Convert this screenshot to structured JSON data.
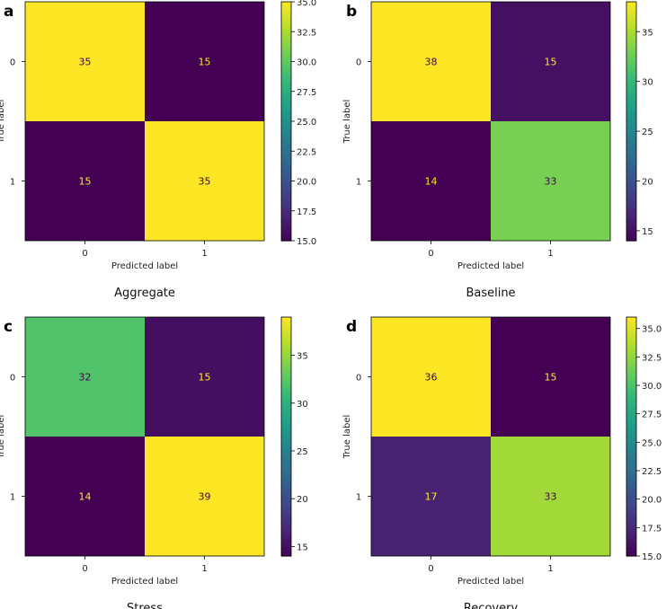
{
  "chart_data": [
    {
      "type": "heatmap",
      "panel_letter": "a",
      "title": "Aggregate",
      "xlabel": "Predicted label",
      "ylabel": "True label",
      "x_categories": [
        "0",
        "1"
      ],
      "y_categories": [
        "0",
        "1"
      ],
      "values": [
        [
          35,
          15
        ],
        [
          15,
          35
        ]
      ],
      "colorbar": {
        "min": 15,
        "max": 35,
        "ticks": [
          "15.0",
          "17.5",
          "20.0",
          "22.5",
          "25.0",
          "27.5",
          "30.0",
          "32.5",
          "35.0"
        ]
      }
    },
    {
      "type": "heatmap",
      "panel_letter": "b",
      "title": "Baseline",
      "xlabel": "Predicted label",
      "ylabel": "True label",
      "x_categories": [
        "0",
        "1"
      ],
      "y_categories": [
        "0",
        "1"
      ],
      "values": [
        [
          38,
          15
        ],
        [
          14,
          33
        ]
      ],
      "colorbar": {
        "min": 14,
        "max": 38,
        "ticks": [
          "15",
          "20",
          "25",
          "30",
          "35"
        ]
      }
    },
    {
      "type": "heatmap",
      "panel_letter": "c",
      "title": "Stress",
      "xlabel": "Predicted label",
      "ylabel": "True label",
      "x_categories": [
        "0",
        "1"
      ],
      "y_categories": [
        "0",
        "1"
      ],
      "values": [
        [
          32,
          15
        ],
        [
          14,
          39
        ]
      ],
      "colorbar": {
        "min": 14,
        "max": 39,
        "ticks": [
          "15",
          "20",
          "25",
          "30",
          "35"
        ]
      }
    },
    {
      "type": "heatmap",
      "panel_letter": "d",
      "title": "Recovery",
      "xlabel": "Predicted label",
      "ylabel": "True label",
      "x_categories": [
        "0",
        "1"
      ],
      "y_categories": [
        "0",
        "1"
      ],
      "values": [
        [
          36,
          15
        ],
        [
          17,
          33
        ]
      ],
      "colorbar": {
        "min": 15,
        "max": 36,
        "ticks": [
          "15.0",
          "17.5",
          "20.0",
          "22.5",
          "25.0",
          "27.5",
          "30.0",
          "32.5",
          "35.0"
        ]
      }
    }
  ],
  "colormap": "viridis",
  "text_colors": {
    "on_dark": "#fde725",
    "on_light": "#440154"
  }
}
